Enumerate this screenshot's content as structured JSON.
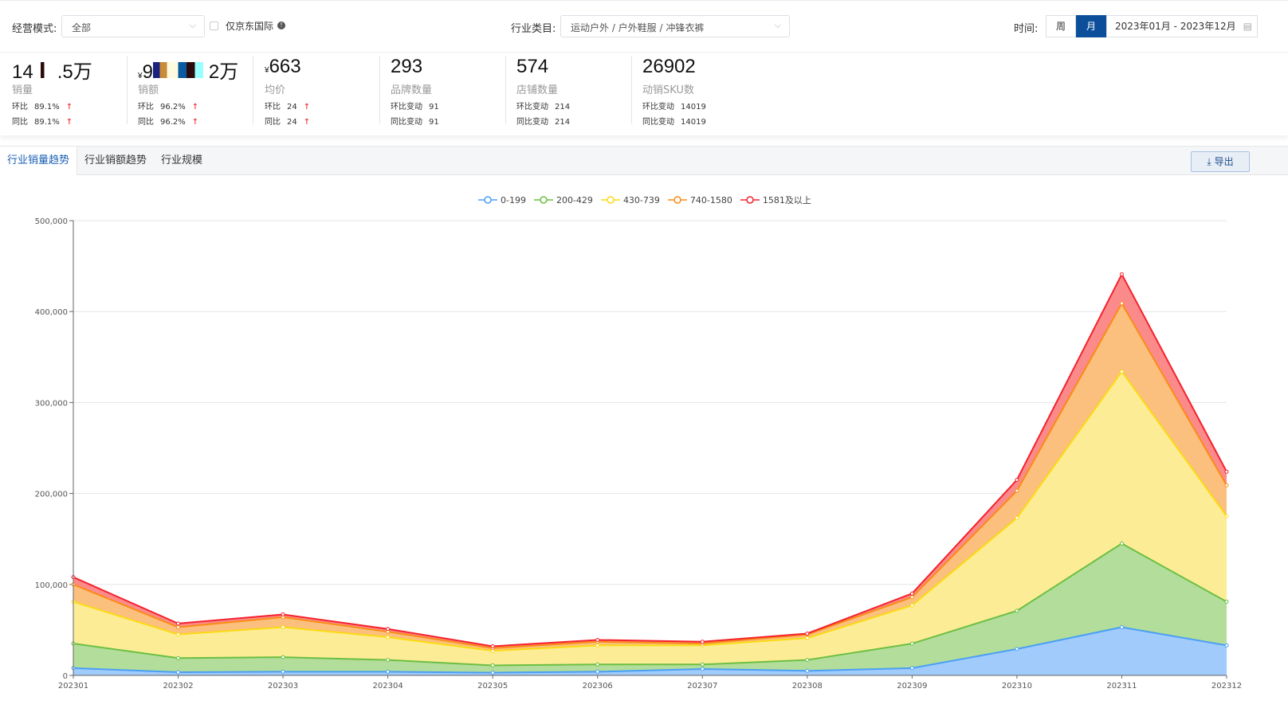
{
  "filters": {
    "mode_label": "经营模式:",
    "mode_value": "全部",
    "jd_intl_label": "仅京东国际",
    "category_label": "行业类目:",
    "category_value": "运动户外 / 户外鞋服 / 冲锋衣裤",
    "time_label": "时间:",
    "week_label": "周",
    "month_label": "月",
    "date_range": "2023年01月 - 2023年12月",
    "accent": "#0d4e9a"
  },
  "stats": [
    {
      "value_prefix": "14",
      "value_suffix": ".5万",
      "name": "销量",
      "r1_label": "环比",
      "r1_value": "89.1%",
      "r2_label": "同比",
      "r2_value": "89.1%"
    },
    {
      "currency": "¥",
      "value_prefix": "9",
      "value_suffix": "2万",
      "name": "销额",
      "r1_label": "环比",
      "r1_value": "96.2%",
      "r2_label": "同比",
      "r2_value": "96.2%"
    },
    {
      "currency": "¥",
      "value": "663",
      "name": "均价",
      "r1_label": "环比",
      "r1_value": "24",
      "r2_label": "同比",
      "r2_value": "24"
    },
    {
      "value": "293",
      "name": "品牌数量",
      "r1_label": "环比变动",
      "r1_value": "91",
      "r2_label": "同比变动",
      "r2_value": "91"
    },
    {
      "value": "574",
      "name": "店铺数量",
      "r1_label": "环比变动",
      "r1_value": "214",
      "r2_label": "同比变动",
      "r2_value": "214"
    },
    {
      "value": "26902",
      "name": "动销SKU数",
      "r1_label": "环比变动",
      "r1_value": "14019",
      "r2_label": "同比变动",
      "r2_value": "14019"
    }
  ],
  "tabs": [
    "行业销量趋势",
    "行业销额趋势",
    "行业规模"
  ],
  "export_label": "导出",
  "chart_data": {
    "type": "area",
    "stacked": true,
    "grid": true,
    "legend": "top",
    "categories": [
      "202301",
      "202302",
      "202303",
      "202304",
      "202305",
      "202306",
      "202307",
      "202308",
      "202309",
      "202310",
      "202311",
      "202312"
    ],
    "ylim": [
      0,
      500000
    ],
    "yticks": [
      "0",
      "100,000",
      "200,000",
      "300,000",
      "400,000",
      "500,000"
    ],
    "series": [
      {
        "name": "0-199",
        "color": "#4a9ff5",
        "fill": "#a0cbfb",
        "values": [
          8000,
          3500,
          4000,
          4000,
          3000,
          4000,
          7000,
          5000,
          8000,
          29000,
          53000,
          33000
        ]
      },
      {
        "name": "200-429",
        "color": "#6cbf43",
        "fill": "#b3dd9a",
        "values": [
          27000,
          15500,
          16000,
          13000,
          8000,
          8000,
          5000,
          12000,
          27000,
          42000,
          92000,
          48000
        ]
      },
      {
        "name": "430-739",
        "color": "#fadb14",
        "fill": "#fdec96",
        "values": [
          46000,
          26000,
          33000,
          25000,
          16000,
          21000,
          21000,
          24000,
          42000,
          102000,
          189000,
          94000
        ]
      },
      {
        "name": "740-1580",
        "color": "#fa8c16",
        "fill": "#fbbf7e",
        "values": [
          19000,
          8000,
          11000,
          6000,
          3000,
          4000,
          2000,
          4000,
          9000,
          30000,
          75000,
          34000
        ]
      },
      {
        "name": "1581及以上",
        "color": "#f5222d",
        "fill": "#fb8a8a",
        "values": [
          8000,
          4000,
          3000,
          3000,
          2000,
          2000,
          2000,
          1000,
          4000,
          12000,
          32000,
          15000
        ]
      }
    ]
  }
}
